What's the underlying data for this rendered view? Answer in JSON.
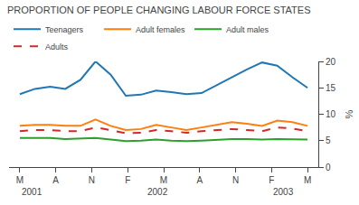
{
  "chart_data": {
    "type": "line",
    "title": "PROPORTION OF PEOPLE CHANGING LABOUR FORCE STATES",
    "ylabel": "%",
    "x": [
      0,
      0.42105263157894735,
      0.8421052631578947,
      1.263157894736842,
      1.6842105263157894,
      2.1052631578947367,
      2.526315789473684,
      2.9473684210526314,
      3.3684210526315788,
      3.789473684210526,
      4.2105263157894735,
      4.631578947368421,
      5.052631578947368,
      5.473684210526316,
      5.894736842105263,
      6.315789473684211,
      6.7368421052631575,
      7.157894736842105,
      7.578947368421052,
      8
    ],
    "series": [
      {
        "name": "Teenagers",
        "values": [
          13.8,
          14.8,
          15.2,
          14.8,
          16.5,
          20.0,
          17.5,
          13.5,
          13.7,
          14.5,
          14.2,
          13.8,
          14.0,
          15.5,
          17.0,
          18.5,
          19.8,
          19.2,
          17.0,
          15.0
        ]
      },
      {
        "name": "Adult females",
        "values": [
          7.8,
          8.0,
          8.0,
          7.8,
          7.8,
          9.0,
          7.8,
          7.0,
          7.2,
          8.0,
          7.5,
          7.0,
          7.5,
          8.0,
          8.5,
          8.2,
          7.8,
          8.8,
          8.5,
          7.8
        ]
      },
      {
        "name": "Adult males",
        "values": [
          5.5,
          5.5,
          5.5,
          5.3,
          5.4,
          5.5,
          5.2,
          4.9,
          5.0,
          5.2,
          5.0,
          4.9,
          5.0,
          5.2,
          5.3,
          5.3,
          5.2,
          5.3,
          5.3,
          5.2
        ]
      },
      {
        "name": "Adults",
        "line_style": "dashed",
        "values": [
          6.8,
          7.0,
          7.0,
          6.8,
          6.8,
          7.5,
          7.0,
          6.4,
          6.5,
          7.0,
          6.8,
          6.5,
          6.8,
          7.0,
          7.2,
          7.0,
          6.8,
          7.5,
          7.3,
          6.8
        ]
      }
    ],
    "xlim": [
      -0.3,
      8.3
    ],
    "xticks": [
      {
        "value": 0,
        "label": "M"
      },
      {
        "value": 1,
        "label": "A"
      },
      {
        "value": 2,
        "label": "N"
      },
      {
        "value": 3,
        "label": "F"
      },
      {
        "value": 4,
        "label": "M"
      },
      {
        "value": 5,
        "label": "A"
      },
      {
        "value": 6,
        "label": "N"
      },
      {
        "value": 7,
        "label": "F"
      },
      {
        "value": 8,
        "label": "M"
      }
    ],
    "ylim": [
      0,
      20
    ],
    "yticks": [
      0,
      5,
      10,
      15,
      20
    ],
    "annotations": [
      {
        "text": "2001",
        "x": 0
      },
      {
        "text": "2002",
        "x": 3.5
      },
      {
        "text": "2003",
        "x": 7
      }
    ],
    "grid": false,
    "legend": "top"
  }
}
